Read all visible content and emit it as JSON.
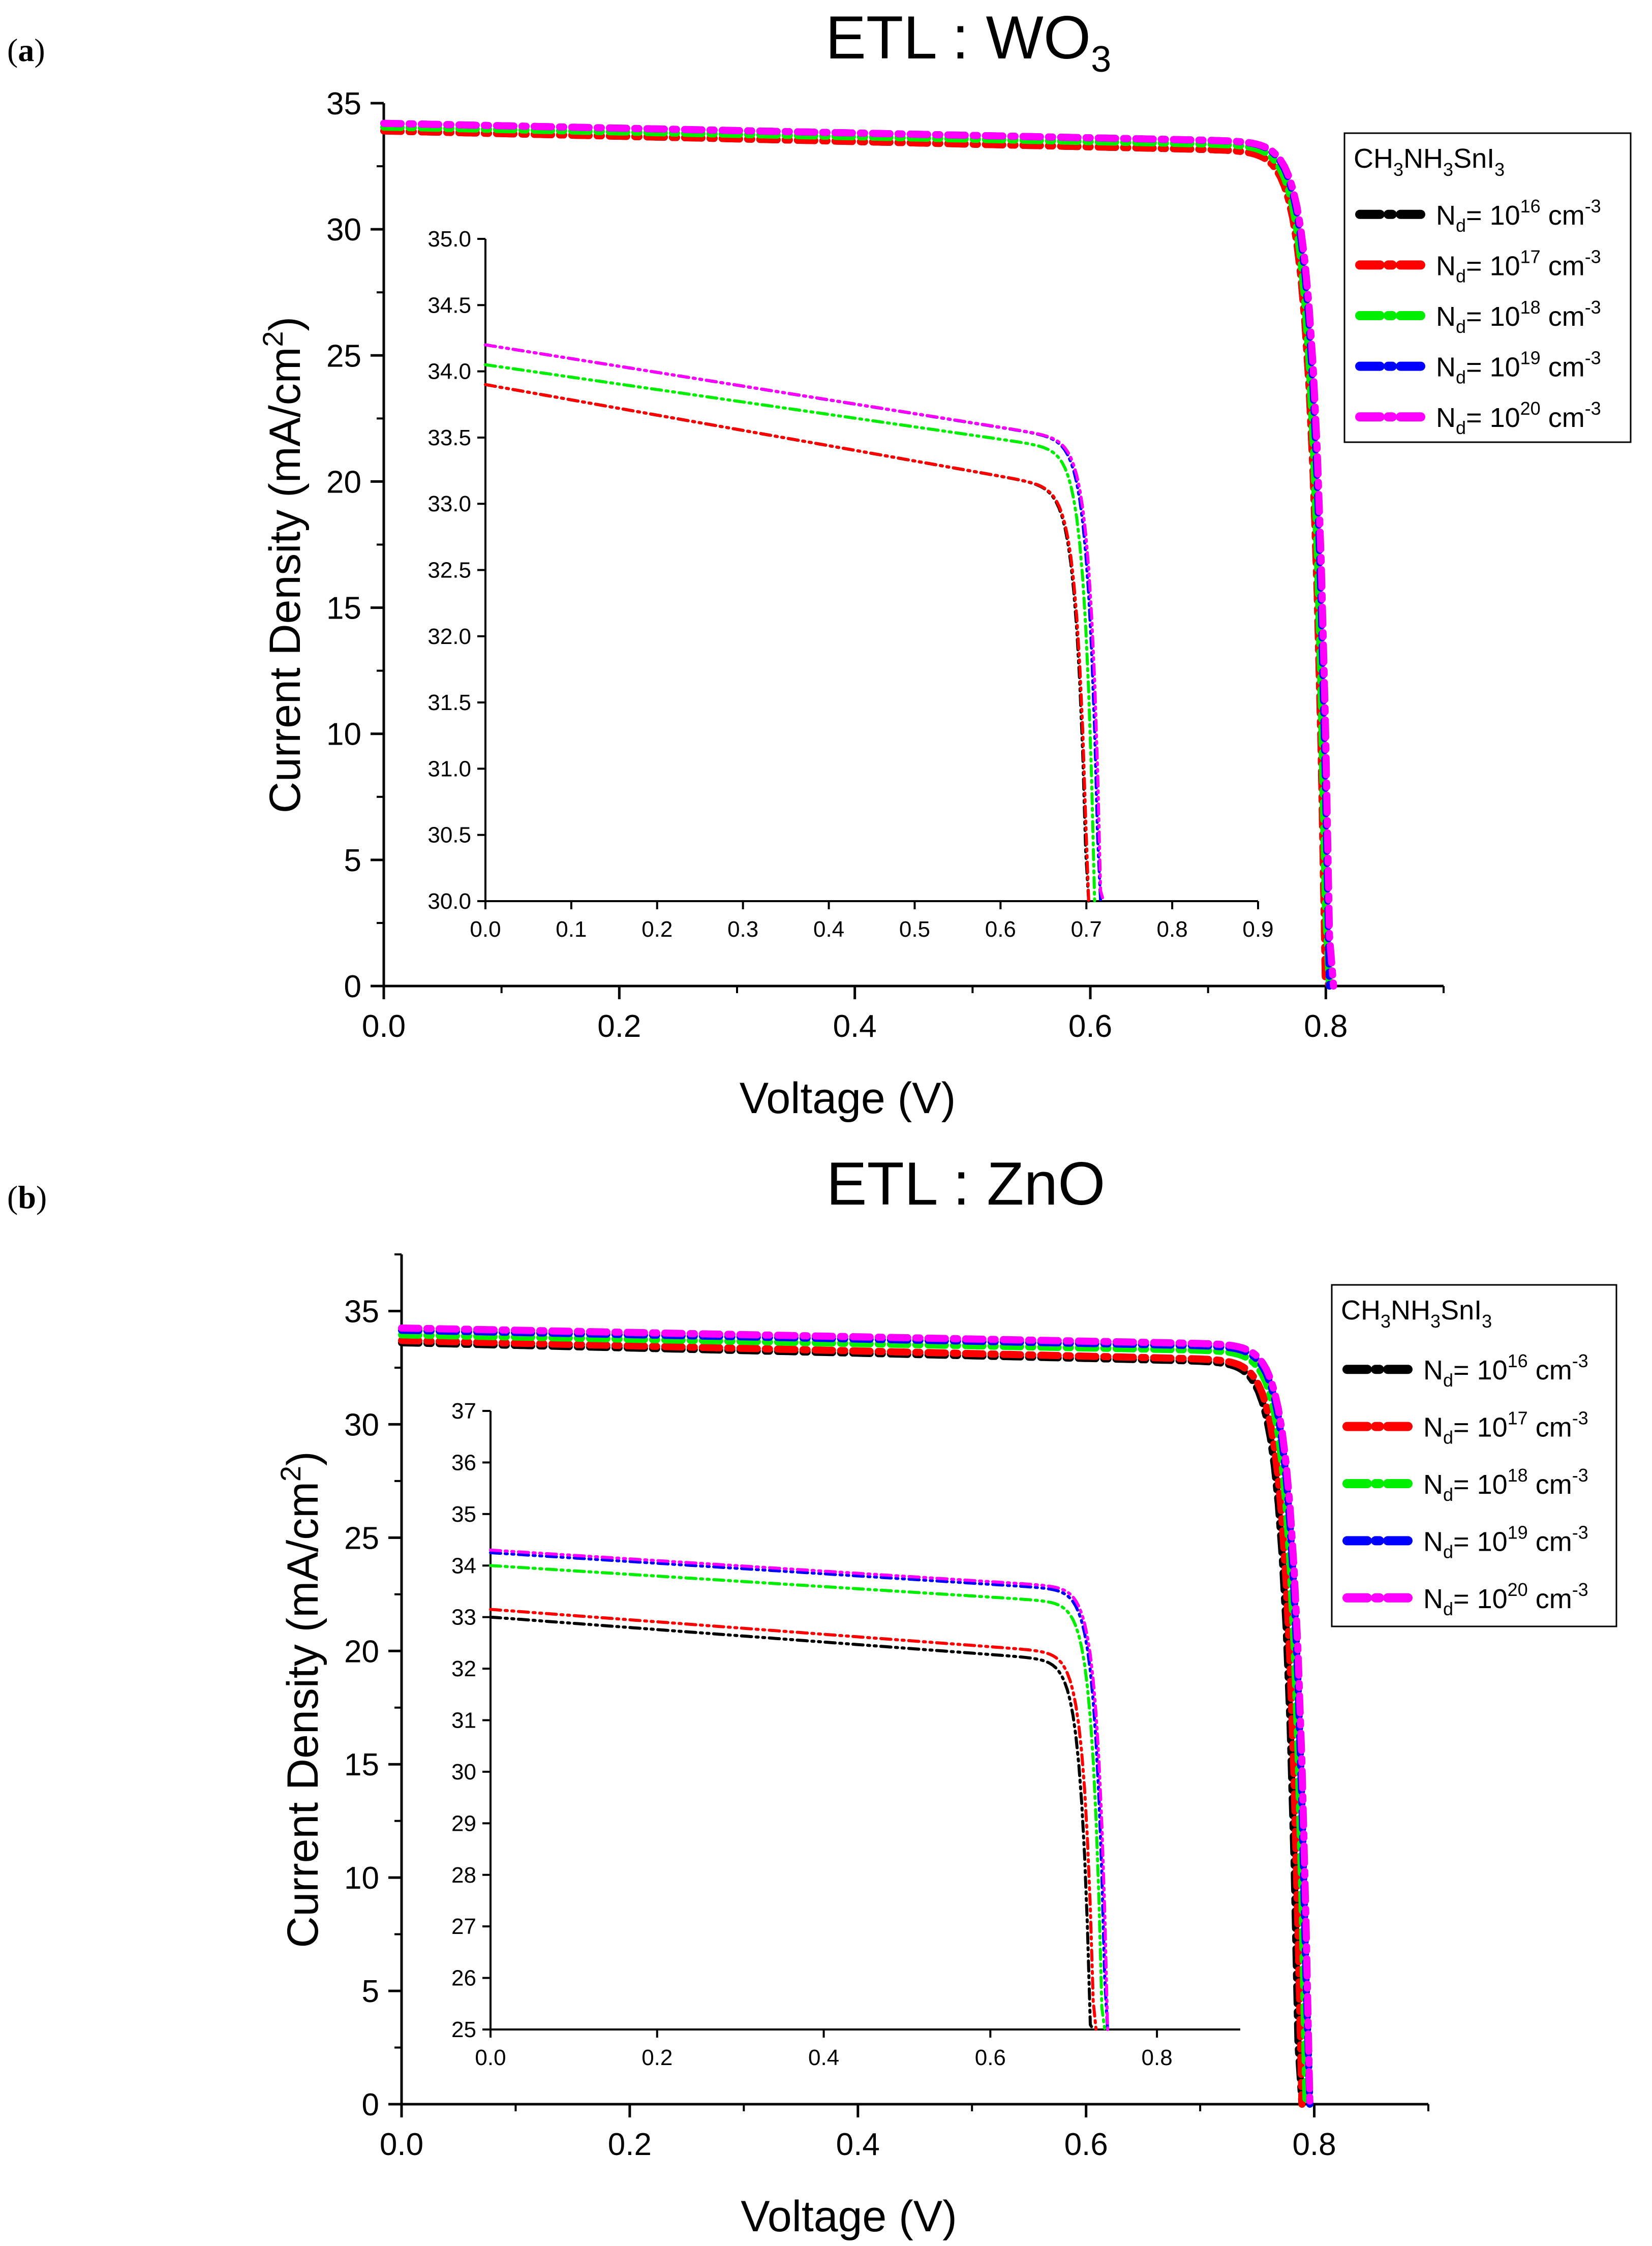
{
  "figure": {
    "panels": [
      {
        "label_open": "(",
        "label_letter": "a",
        "label_close": ")"
      },
      {
        "label_open": "(",
        "label_letter": "b",
        "label_close": ")"
      }
    ],
    "xlabel": "Voltage (V)",
    "ylabel_main": "Current Density (mA/cm",
    "ylabel_sup": "2",
    "ylabel_close": ")",
    "legend": {
      "title_parts": [
        "CH",
        "3",
        "NH",
        "3",
        "SnI",
        "3"
      ],
      "entries": [
        {
          "prefix": "N",
          "sub": "d",
          "mid": "= 10",
          "exp": "16",
          "unit": " cm",
          "unit_exp": "-3",
          "color": "#000000"
        },
        {
          "prefix": "N",
          "sub": "d",
          "mid": "= 10",
          "exp": "17",
          "unit": " cm",
          "unit_exp": "-3",
          "color": "#ff0000"
        },
        {
          "prefix": "N",
          "sub": "d",
          "mid": "= 10",
          "exp": "18",
          "unit": " cm",
          "unit_exp": "-3",
          "color": "#00ee00"
        },
        {
          "prefix": "N",
          "sub": "d",
          "mid": "= 10",
          "exp": "19",
          "unit": " cm",
          "unit_exp": "-3",
          "color": "#0000ff"
        },
        {
          "prefix": "N",
          "sub": "d",
          "mid": "= 10",
          "exp": "20",
          "unit": " cm",
          "unit_exp": "-3",
          "color": "#ff00ff"
        }
      ]
    }
  },
  "chart_data": [
    {
      "type": "line",
      "panel": "a",
      "title": "ETL : WO",
      "title_sub": "3",
      "xlabel": "Voltage (V)",
      "ylabel": "Current Density (mA/cm2)",
      "xlim": [
        0,
        0.9
      ],
      "ylim": [
        0,
        35
      ],
      "xticks": [
        "0.0",
        "0.2",
        "0.4",
        "0.6",
        "0.8"
      ],
      "xtick_values": [
        0,
        0.2,
        0.4,
        0.6,
        0.8
      ],
      "yticks": [
        "0",
        "5",
        "10",
        "15",
        "20",
        "25",
        "30",
        "35"
      ],
      "ytick_values": [
        0,
        5,
        10,
        15,
        20,
        25,
        30,
        35
      ],
      "series": [
        {
          "name": "Nd= 10^16 cm^-3",
          "color": "#000000",
          "jsc": 33.9,
          "voc": 0.8,
          "decline": 0.55
        },
        {
          "name": "Nd= 10^17 cm^-3",
          "color": "#ff0000",
          "jsc": 33.9,
          "voc": 0.8,
          "decline": 0.55
        },
        {
          "name": "Nd= 10^18 cm^-3",
          "color": "#00ee00",
          "jsc": 34.05,
          "voc": 0.801,
          "decline": 0.5
        },
        {
          "name": "Nd= 10^19 cm^-3",
          "color": "#0000ff",
          "jsc": 34.2,
          "voc": 0.803,
          "decline": 0.5
        },
        {
          "name": "Nd= 10^20 cm^-3",
          "color": "#ff00ff",
          "jsc": 34.2,
          "voc": 0.804,
          "decline": 0.5
        }
      ],
      "inset": {
        "xlim": [
          0,
          0.9
        ],
        "ylim": [
          30,
          35
        ],
        "xticks": [
          "0.0",
          "0.1",
          "0.2",
          "0.3",
          "0.4",
          "0.5",
          "0.6",
          "0.7",
          "0.8",
          "0.9"
        ],
        "xtick_values": [
          0,
          0.1,
          0.2,
          0.3,
          0.4,
          0.5,
          0.6,
          0.7,
          0.8,
          0.9
        ],
        "yticks": [
          "30.0",
          "30.5",
          "31.0",
          "31.5",
          "32.0",
          "32.5",
          "33.0",
          "33.5",
          "34.0",
          "34.5",
          "35.0"
        ],
        "ytick_values": [
          30,
          30.5,
          31,
          31.5,
          32,
          32.5,
          33,
          33.5,
          34,
          34.5,
          35
        ],
        "series": [
          {
            "color": "#000000",
            "jsc": 33.9,
            "vknee": 0.7,
            "vend": 0.727,
            "decline": 0.55
          },
          {
            "color": "#ff0000",
            "jsc": 33.9,
            "vknee": 0.7,
            "vend": 0.728,
            "decline": 0.55
          },
          {
            "color": "#00ee00",
            "jsc": 34.05,
            "vknee": 0.72,
            "vend": 0.735,
            "decline": 0.45
          },
          {
            "color": "#0000ff",
            "jsc": 34.2,
            "vknee": 0.73,
            "vend": 0.74,
            "decline": 0.5
          },
          {
            "color": "#ff00ff",
            "jsc": 34.2,
            "vknee": 0.73,
            "vend": 0.742,
            "decline": 0.5
          }
        ]
      }
    },
    {
      "type": "line",
      "panel": "b",
      "title": "ETL : ZnO",
      "title_sub": "",
      "xlabel": "Voltage (V)",
      "ylabel": "Current Density (mA/cm2)",
      "xlim": [
        0,
        0.9
      ],
      "ylim": [
        0,
        37.5
      ],
      "xticks": [
        "0.0",
        "0.2",
        "0.4",
        "0.6",
        "0.8"
      ],
      "xtick_values": [
        0,
        0.2,
        0.4,
        0.6,
        0.8
      ],
      "yticks": [
        "0",
        "5",
        "10",
        "15",
        "20",
        "25",
        "30",
        "35"
      ],
      "ytick_values": [
        0,
        5,
        10,
        15,
        20,
        25,
        30,
        35
      ],
      "series": [
        {
          "name": "Nd= 10^16 cm^-3",
          "color": "#000000",
          "jsc": 33.6,
          "voc": 0.787,
          "decline": 0.6
        },
        {
          "name": "Nd= 10^17 cm^-3",
          "color": "#ff0000",
          "jsc": 33.7,
          "voc": 0.789,
          "decline": 0.6
        },
        {
          "name": "Nd= 10^18 cm^-3",
          "color": "#00ee00",
          "jsc": 33.95,
          "voc": 0.793,
          "decline": 0.5
        },
        {
          "name": "Nd= 10^19 cm^-3",
          "color": "#0000ff",
          "jsc": 34.15,
          "voc": 0.795,
          "decline": 0.5
        },
        {
          "name": "Nd= 10^20 cm^-3",
          "color": "#ff00ff",
          "jsc": 34.25,
          "voc": 0.796,
          "decline": 0.5
        }
      ],
      "inset": {
        "xlim": [
          0,
          0.9
        ],
        "ylim": [
          25,
          37
        ],
        "xticks": [
          "0.0",
          "0.2",
          "0.4",
          "0.6",
          "0.8"
        ],
        "xtick_values": [
          0,
          0.2,
          0.4,
          0.6,
          0.8
        ],
        "yticks": [
          "25",
          "26",
          "27",
          "28",
          "29",
          "30",
          "31",
          "32",
          "33",
          "34",
          "35",
          "36",
          "37"
        ],
        "ytick_values": [
          25,
          26,
          27,
          28,
          29,
          30,
          31,
          32,
          33,
          34,
          35,
          36,
          37
        ],
        "series": [
          {
            "color": "#000000",
            "jsc": 33.0,
            "vknee": 0.68,
            "vend": 0.737,
            "decline": 0.6
          },
          {
            "color": "#ff0000",
            "jsc": 33.15,
            "vknee": 0.69,
            "vend": 0.741,
            "decline": 0.6
          },
          {
            "color": "#00ee00",
            "jsc": 34.0,
            "vknee": 0.7,
            "vend": 0.75,
            "decline": 0.5
          },
          {
            "color": "#0000ff",
            "jsc": 34.25,
            "vknee": 0.7,
            "vend": 0.754,
            "decline": 0.5
          },
          {
            "color": "#ff00ff",
            "jsc": 34.3,
            "vknee": 0.7,
            "vend": 0.756,
            "decline": 0.5
          }
        ]
      }
    }
  ]
}
